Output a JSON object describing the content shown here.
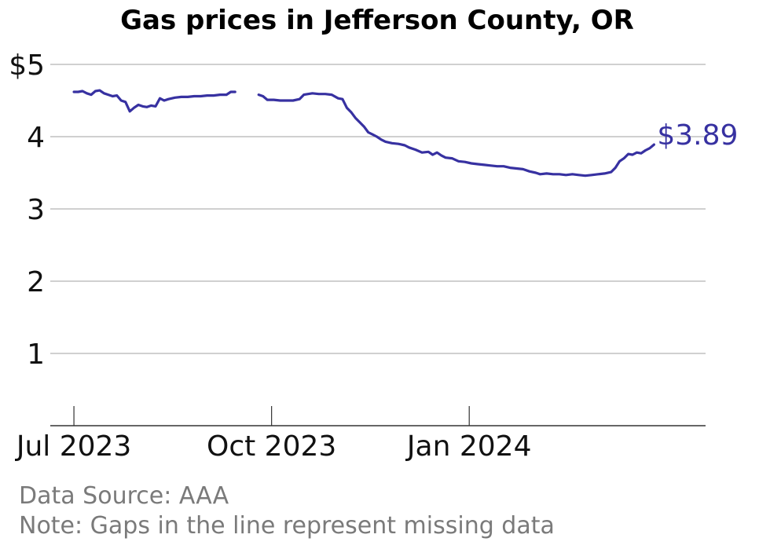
{
  "chart_data": {
    "type": "line",
    "title": "Gas prices in Jefferson County, OR",
    "xlabel": "",
    "ylabel": "",
    "x_range": [
      "2023-06-20",
      "2024-04-20"
    ],
    "ylim": [
      0,
      5
    ],
    "y_ticks": [
      {
        "value": 1,
        "label": "1"
      },
      {
        "value": 2,
        "label": "2"
      },
      {
        "value": 3,
        "label": "3"
      },
      {
        "value": 4,
        "label": "4"
      },
      {
        "value": 5,
        "label": "$5"
      }
    ],
    "x_ticks": [
      {
        "date": "2023-07-01",
        "label": "Jul 2023"
      },
      {
        "date": "2023-10-01",
        "label": "Oct 2023"
      },
      {
        "date": "2024-01-01",
        "label": "Jan 2024"
      }
    ],
    "grid": "horizontal",
    "line_color": "#3731a1",
    "end_label": "$3.89",
    "series": [
      {
        "segments": [
          [
            [
              "2023-07-01",
              4.62
            ],
            [
              "2023-07-03",
              4.62
            ],
            [
              "2023-07-05",
              4.63
            ],
            [
              "2023-07-07",
              4.6
            ],
            [
              "2023-07-09",
              4.58
            ],
            [
              "2023-07-11",
              4.63
            ],
            [
              "2023-07-13",
              4.64
            ],
            [
              "2023-07-15",
              4.6
            ],
            [
              "2023-07-17",
              4.58
            ],
            [
              "2023-07-19",
              4.56
            ],
            [
              "2023-07-21",
              4.57
            ],
            [
              "2023-07-23",
              4.5
            ],
            [
              "2023-07-25",
              4.48
            ],
            [
              "2023-07-27",
              4.35
            ],
            [
              "2023-07-29",
              4.4
            ],
            [
              "2023-07-31",
              4.44
            ],
            [
              "2023-08-02",
              4.42
            ],
            [
              "2023-08-04",
              4.41
            ],
            [
              "2023-08-06",
              4.43
            ],
            [
              "2023-08-08",
              4.42
            ],
            [
              "2023-08-10",
              4.53
            ],
            [
              "2023-08-12",
              4.5
            ],
            [
              "2023-08-14",
              4.52
            ],
            [
              "2023-08-17",
              4.54
            ],
            [
              "2023-08-20",
              4.55
            ],
            [
              "2023-08-23",
              4.55
            ],
            [
              "2023-08-26",
              4.56
            ],
            [
              "2023-08-29",
              4.56
            ],
            [
              "2023-09-01",
              4.57
            ],
            [
              "2023-09-04",
              4.57
            ],
            [
              "2023-09-07",
              4.58
            ],
            [
              "2023-09-10",
              4.58
            ],
            [
              "2023-09-12",
              4.62
            ],
            [
              "2023-09-14",
              4.62
            ]
          ],
          [
            [
              "2023-09-25",
              4.58
            ],
            [
              "2023-09-27",
              4.56
            ],
            [
              "2023-09-29",
              4.51
            ],
            [
              "2023-10-02",
              4.51
            ],
            [
              "2023-10-05",
              4.5
            ],
            [
              "2023-10-08",
              4.5
            ],
            [
              "2023-10-11",
              4.5
            ],
            [
              "2023-10-14",
              4.52
            ],
            [
              "2023-10-16",
              4.58
            ],
            [
              "2023-10-18",
              4.59
            ],
            [
              "2023-10-20",
              4.6
            ],
            [
              "2023-10-23",
              4.59
            ],
            [
              "2023-10-26",
              4.59
            ],
            [
              "2023-10-29",
              4.58
            ],
            [
              "2023-11-01",
              4.53
            ],
            [
              "2023-11-03",
              4.52
            ],
            [
              "2023-11-05",
              4.4
            ],
            [
              "2023-11-07",
              4.34
            ],
            [
              "2023-11-09",
              4.26
            ],
            [
              "2023-11-11",
              4.2
            ],
            [
              "2023-11-13",
              4.14
            ],
            [
              "2023-11-15",
              4.06
            ],
            [
              "2023-11-17",
              4.03
            ],
            [
              "2023-11-19",
              4.0
            ],
            [
              "2023-11-21",
              3.96
            ],
            [
              "2023-11-23",
              3.93
            ],
            [
              "2023-11-26",
              3.91
            ],
            [
              "2023-11-29",
              3.9
            ],
            [
              "2023-12-02",
              3.88
            ],
            [
              "2023-12-04",
              3.85
            ],
            [
              "2023-12-07",
              3.82
            ],
            [
              "2023-12-10",
              3.78
            ],
            [
              "2023-12-13",
              3.79
            ],
            [
              "2023-12-15",
              3.75
            ],
            [
              "2023-12-17",
              3.78
            ],
            [
              "2023-12-19",
              3.74
            ],
            [
              "2023-12-21",
              3.71
            ],
            [
              "2023-12-24",
              3.7
            ],
            [
              "2023-12-27",
              3.66
            ],
            [
              "2023-12-30",
              3.65
            ],
            [
              "2024-01-02",
              3.63
            ],
            [
              "2024-01-05",
              3.62
            ],
            [
              "2024-01-08",
              3.61
            ],
            [
              "2024-01-11",
              3.6
            ],
            [
              "2024-01-14",
              3.59
            ],
            [
              "2024-01-17",
              3.59
            ],
            [
              "2024-01-20",
              3.57
            ],
            [
              "2024-01-23",
              3.56
            ],
            [
              "2024-01-26",
              3.55
            ],
            [
              "2024-01-29",
              3.52
            ],
            [
              "2024-02-01",
              3.5
            ],
            [
              "2024-02-03",
              3.48
            ],
            [
              "2024-02-06",
              3.49
            ],
            [
              "2024-02-09",
              3.48
            ],
            [
              "2024-02-12",
              3.48
            ],
            [
              "2024-02-15",
              3.47
            ],
            [
              "2024-02-18",
              3.48
            ],
            [
              "2024-02-21",
              3.47
            ],
            [
              "2024-02-24",
              3.46
            ],
            [
              "2024-02-27",
              3.47
            ],
            [
              "2024-03-01",
              3.48
            ],
            [
              "2024-03-04",
              3.49
            ],
            [
              "2024-03-07",
              3.51
            ],
            [
              "2024-03-09",
              3.57
            ],
            [
              "2024-03-11",
              3.66
            ],
            [
              "2024-03-13",
              3.7
            ],
            [
              "2024-03-15",
              3.76
            ],
            [
              "2024-03-17",
              3.75
            ],
            [
              "2024-03-19",
              3.78
            ],
            [
              "2024-03-21",
              3.77
            ],
            [
              "2024-03-23",
              3.81
            ],
            [
              "2024-03-25",
              3.84
            ],
            [
              "2024-03-27",
              3.89
            ]
          ]
        ]
      }
    ]
  },
  "footer": {
    "source": "Data Source: AAA",
    "note": "Note: Gaps in the line represent missing data"
  }
}
